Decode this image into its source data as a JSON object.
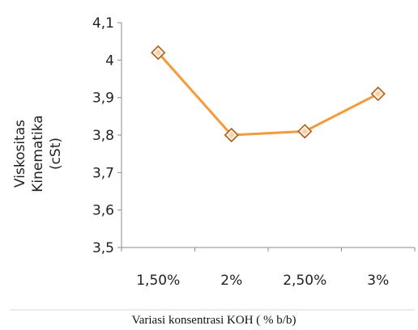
{
  "chart_data": {
    "type": "line",
    "title": "",
    "xlabel": "Variasi konsentrasi KOH ( % b/b)",
    "ylabel_lines": [
      "Viskositas",
      "Kinematika",
      "(cSt)"
    ],
    "categories": [
      "1,50%",
      "2%",
      "2,50%",
      "3%"
    ],
    "y_ticks": [
      "3,5",
      "3,6",
      "3,7",
      "3,8",
      "3,9",
      "4",
      "4,1"
    ],
    "ylim": [
      3.5,
      4.1
    ],
    "grid": false,
    "legend": "none",
    "series": [
      {
        "values": [
          4.02,
          3.8,
          3.81,
          3.91
        ],
        "color": "#f39a3c",
        "marker": "diamond"
      }
    ]
  }
}
